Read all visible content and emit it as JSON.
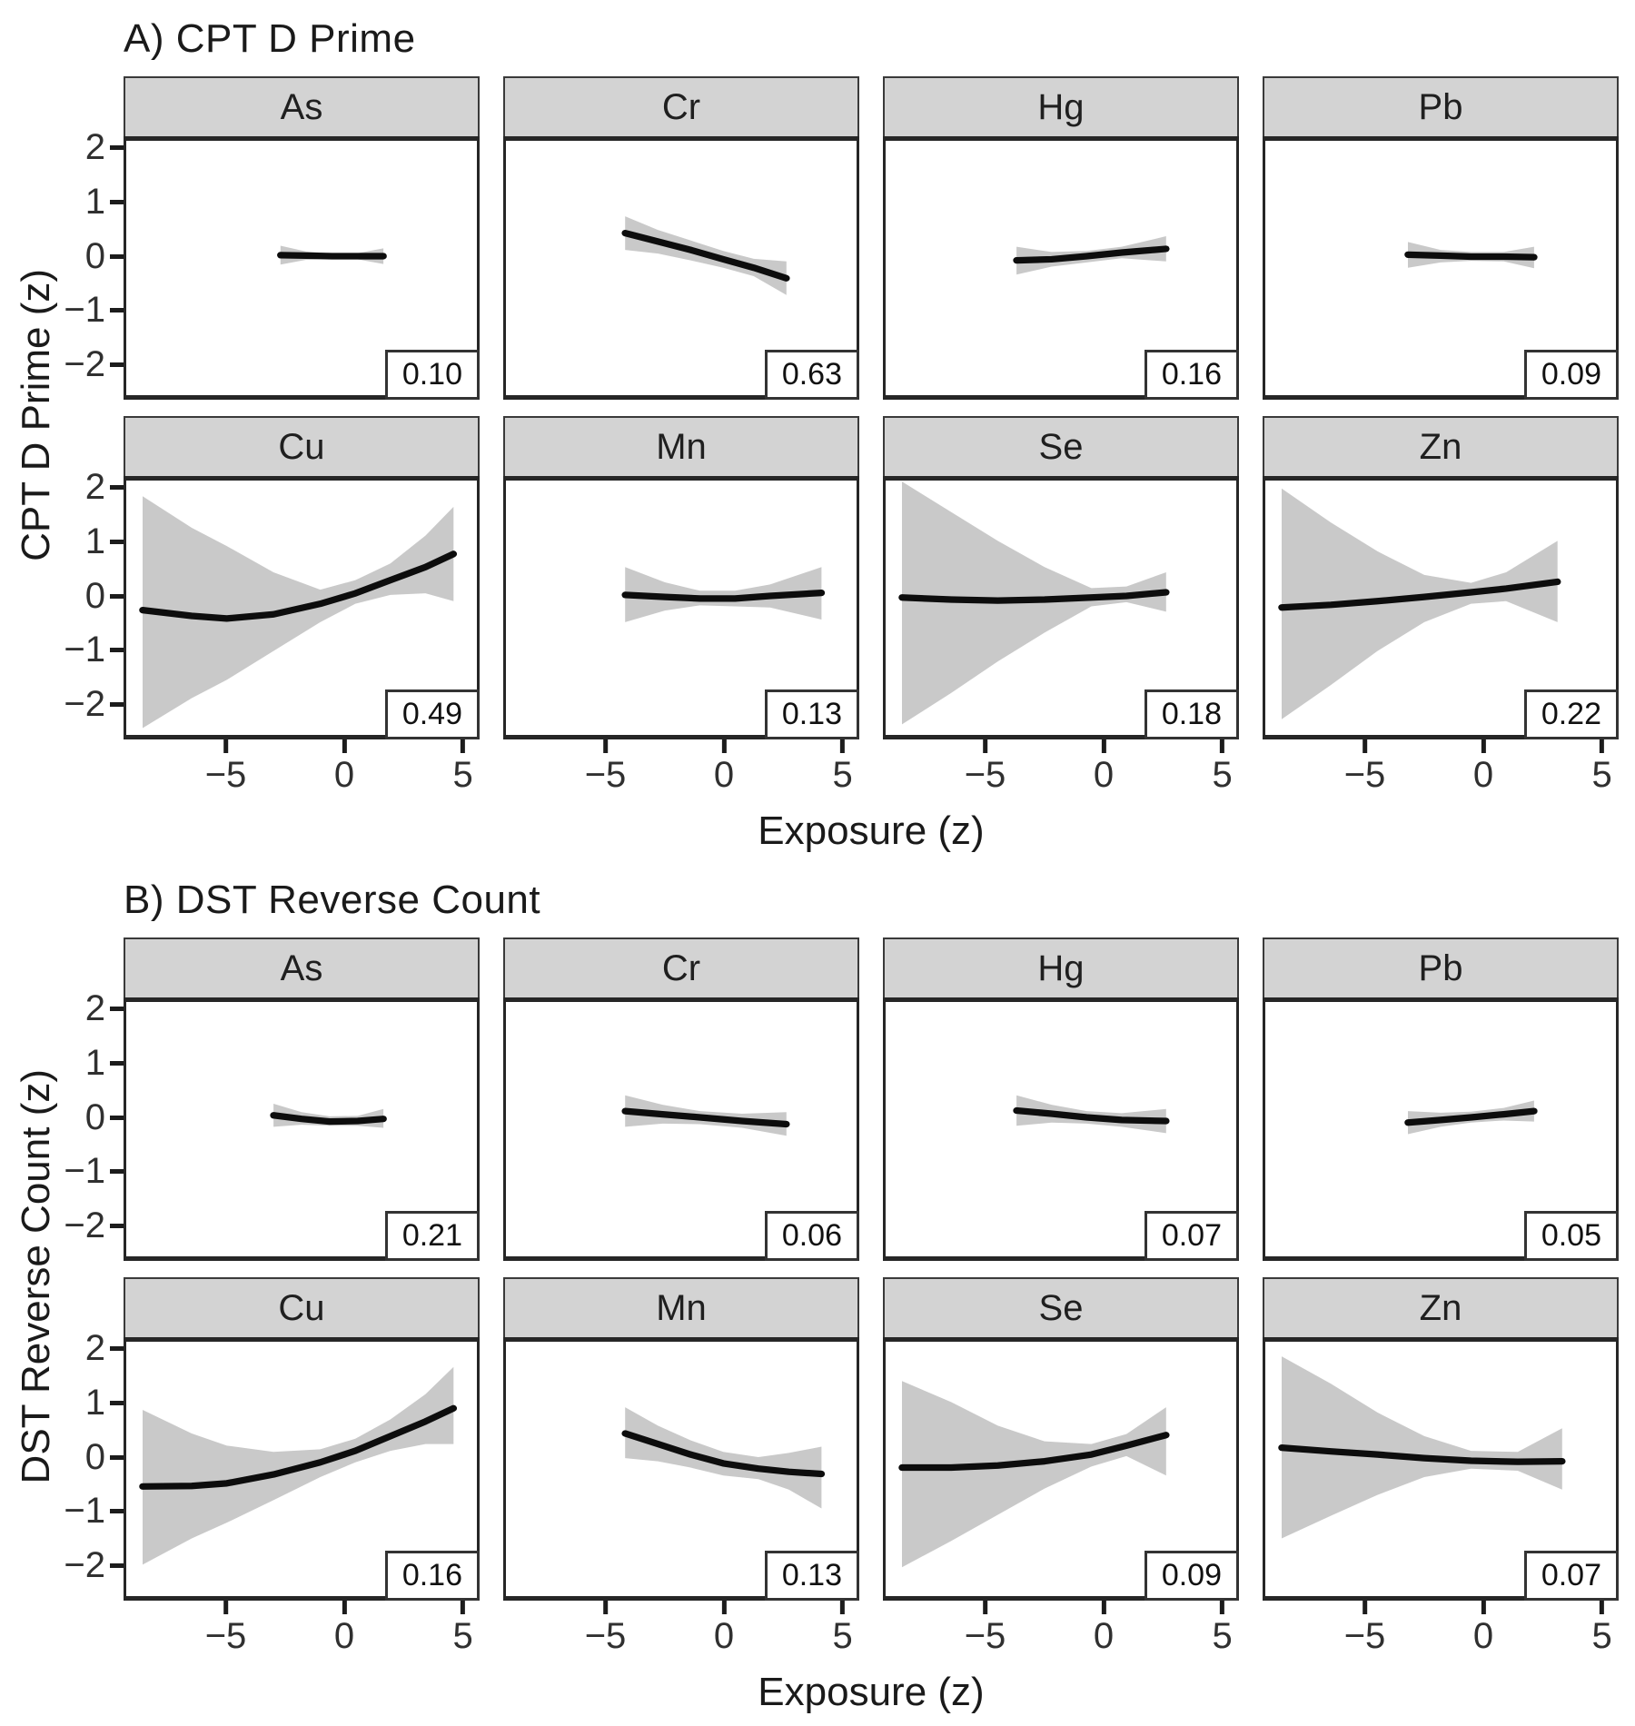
{
  "chart_data": {
    "type": "line",
    "xlabel": "Exposure (z)",
    "x_tick_labels": [
      "−5",
      "0",
      "5"
    ],
    "y_tick_labels": [
      "2",
      "1",
      "0",
      "−1",
      "−2"
    ],
    "x_domain": [
      -9.3,
      5.7
    ],
    "y_domain": [
      -2.65,
      2.2
    ],
    "grid": false,
    "legend": "none",
    "colors": {
      "band": "#c9c9c9",
      "line": "#0d0d0d",
      "strip_bg": "#d3d3d3",
      "panel_border": "#262626"
    },
    "note": "points are [x, fit, ci_low, ci_high]",
    "sections": [
      {
        "title": "A) CPT D Prime",
        "ylabel": "CPT D Prime (z)",
        "facets": [
          {
            "label": "As",
            "value": "0.10",
            "points": [
              [
                -2.7,
                0.02,
                -0.16,
                0.2
              ],
              [
                -1.6,
                0.01,
                -0.07,
                0.09
              ],
              [
                -0.5,
                0.0,
                -0.05,
                0.05
              ],
              [
                0.6,
                0.0,
                -0.06,
                0.06
              ],
              [
                1.7,
                0.0,
                -0.15,
                0.15
              ]
            ]
          },
          {
            "label": "Cr",
            "value": "0.63",
            "points": [
              [
                -4.2,
                0.44,
                0.12,
                0.76
              ],
              [
                -2.8,
                0.28,
                0.05,
                0.5
              ],
              [
                -1.4,
                0.12,
                -0.08,
                0.3
              ],
              [
                0.0,
                -0.06,
                -0.22,
                0.1
              ],
              [
                1.3,
                -0.22,
                -0.38,
                -0.05
              ],
              [
                2.7,
                -0.42,
                -0.74,
                -0.1
              ]
            ]
          },
          {
            "label": "Hg",
            "value": "0.16",
            "points": [
              [
                -3.7,
                -0.08,
                -0.35,
                0.18
              ],
              [
                -2.2,
                -0.06,
                -0.2,
                0.08
              ],
              [
                -0.7,
                0.0,
                -0.12,
                0.1
              ],
              [
                0.8,
                0.07,
                -0.04,
                0.18
              ],
              [
                2.7,
                0.14,
                -0.1,
                0.38
              ]
            ]
          },
          {
            "label": "Pb",
            "value": "0.09",
            "points": [
              [
                -3.2,
                0.03,
                -0.22,
                0.27
              ],
              [
                -1.8,
                0.01,
                -0.12,
                0.12
              ],
              [
                -0.5,
                -0.01,
                -0.09,
                0.08
              ],
              [
                0.9,
                -0.01,
                -0.1,
                0.08
              ],
              [
                2.2,
                -0.02,
                -0.23,
                0.18
              ]
            ]
          },
          {
            "label": "Cu",
            "value": "0.49",
            "points": [
              [
                -8.6,
                -0.27,
                -2.52,
                1.9
              ],
              [
                -6.5,
                -0.38,
                -1.95,
                1.3
              ],
              [
                -5.0,
                -0.43,
                -1.6,
                0.95
              ],
              [
                -3.0,
                -0.35,
                -1.05,
                0.45
              ],
              [
                -1.0,
                -0.15,
                -0.5,
                0.12
              ],
              [
                0.5,
                0.05,
                -0.15,
                0.3
              ],
              [
                2.0,
                0.3,
                0.02,
                0.62
              ],
              [
                3.5,
                0.55,
                0.05,
                1.15
              ],
              [
                4.7,
                0.8,
                -0.1,
                1.7
              ]
            ]
          },
          {
            "label": "Mn",
            "value": "0.13",
            "points": [
              [
                -4.2,
                0.02,
                -0.5,
                0.55
              ],
              [
                -2.5,
                -0.02,
                -0.28,
                0.26
              ],
              [
                -1.0,
                -0.05,
                -0.18,
                0.1
              ],
              [
                0.5,
                -0.05,
                -0.2,
                0.1
              ],
              [
                2.0,
                0.0,
                -0.22,
                0.22
              ],
              [
                4.2,
                0.06,
                -0.45,
                0.55
              ]
            ]
          },
          {
            "label": "Se",
            "value": "0.18",
            "points": [
              [
                -8.6,
                -0.03,
                -2.45,
                2.18
              ],
              [
                -6.5,
                -0.07,
                -1.85,
                1.6
              ],
              [
                -4.5,
                -0.09,
                -1.25,
                1.05
              ],
              [
                -2.5,
                -0.07,
                -0.7,
                0.55
              ],
              [
                -0.5,
                -0.03,
                -0.2,
                0.15
              ],
              [
                1.0,
                0.0,
                -0.12,
                0.18
              ],
              [
                2.7,
                0.07,
                -0.3,
                0.45
              ]
            ]
          },
          {
            "label": "Zn",
            "value": "0.22",
            "points": [
              [
                -8.6,
                -0.22,
                -2.35,
                2.05
              ],
              [
                -6.5,
                -0.17,
                -1.7,
                1.4
              ],
              [
                -4.5,
                -0.1,
                -1.05,
                0.85
              ],
              [
                -2.5,
                -0.02,
                -0.5,
                0.4
              ],
              [
                -0.5,
                0.07,
                -0.15,
                0.25
              ],
              [
                1.0,
                0.14,
                -0.1,
                0.45
              ],
              [
                3.2,
                0.27,
                -0.5,
                1.05
              ]
            ]
          }
        ]
      },
      {
        "title": "B) DST Reverse Count",
        "ylabel": "DST Reverse Count (z)",
        "facets": [
          {
            "label": "As",
            "value": "0.21",
            "points": [
              [
                -3.0,
                0.04,
                -0.18,
                0.26
              ],
              [
                -1.8,
                -0.03,
                -0.14,
                0.1
              ],
              [
                -0.6,
                -0.08,
                -0.16,
                0.02
              ],
              [
                0.6,
                -0.07,
                -0.16,
                0.03
              ],
              [
                1.7,
                -0.03,
                -0.2,
                0.16
              ]
            ]
          },
          {
            "label": "Cr",
            "value": "0.06",
            "points": [
              [
                -4.2,
                0.12,
                -0.18,
                0.42
              ],
              [
                -2.6,
                0.06,
                -0.12,
                0.24
              ],
              [
                -1.0,
                0.0,
                -0.13,
                0.12
              ],
              [
                0.8,
                -0.07,
                -0.2,
                0.07
              ],
              [
                2.7,
                -0.13,
                -0.35,
                0.1
              ]
            ]
          },
          {
            "label": "Hg",
            "value": "0.07",
            "points": [
              [
                -3.7,
                0.13,
                -0.16,
                0.42
              ],
              [
                -2.2,
                0.07,
                -0.1,
                0.24
              ],
              [
                -0.7,
                0.0,
                -0.12,
                0.12
              ],
              [
                0.8,
                -0.05,
                -0.18,
                0.08
              ],
              [
                2.7,
                -0.07,
                -0.3,
                0.16
              ]
            ]
          },
          {
            "label": "Pb",
            "value": "0.05",
            "points": [
              [
                -3.2,
                -0.1,
                -0.32,
                0.12
              ],
              [
                -1.8,
                -0.05,
                -0.18,
                0.09
              ],
              [
                -0.5,
                0.0,
                -0.1,
                0.11
              ],
              [
                0.9,
                0.06,
                -0.06,
                0.18
              ],
              [
                2.2,
                0.12,
                -0.08,
                0.32
              ]
            ]
          },
          {
            "label": "Cu",
            "value": "0.16",
            "points": [
              [
                -8.6,
                -0.56,
                -2.05,
                0.9
              ],
              [
                -6.5,
                -0.55,
                -1.55,
                0.45
              ],
              [
                -5.0,
                -0.5,
                -1.25,
                0.22
              ],
              [
                -3.0,
                -0.33,
                -0.82,
                0.1
              ],
              [
                -1.0,
                -0.1,
                -0.38,
                0.15
              ],
              [
                0.5,
                0.12,
                -0.1,
                0.35
              ],
              [
                2.0,
                0.4,
                0.12,
                0.72
              ],
              [
                3.5,
                0.68,
                0.25,
                1.2
              ],
              [
                4.7,
                0.93,
                0.25,
                1.72
              ]
            ]
          },
          {
            "label": "Mn",
            "value": "0.13",
            "points": [
              [
                -4.2,
                0.45,
                -0.02,
                0.95
              ],
              [
                -2.8,
                0.25,
                -0.08,
                0.6
              ],
              [
                -1.4,
                0.05,
                -0.2,
                0.32
              ],
              [
                0.0,
                -0.12,
                -0.35,
                0.1
              ],
              [
                1.5,
                -0.22,
                -0.42,
                0.0
              ],
              [
                2.8,
                -0.28,
                -0.62,
                0.08
              ],
              [
                4.2,
                -0.32,
                -0.98,
                0.2
              ]
            ]
          },
          {
            "label": "Se",
            "value": "0.09",
            "points": [
              [
                -8.6,
                -0.2,
                -2.1,
                1.45
              ],
              [
                -6.5,
                -0.2,
                -1.6,
                1.05
              ],
              [
                -4.5,
                -0.16,
                -1.1,
                0.6
              ],
              [
                -2.5,
                -0.08,
                -0.6,
                0.3
              ],
              [
                -0.5,
                0.05,
                -0.18,
                0.25
              ],
              [
                1.0,
                0.22,
                0.02,
                0.44
              ],
              [
                2.7,
                0.42,
                -0.35,
                0.95
              ]
            ]
          },
          {
            "label": "Zn",
            "value": "0.07",
            "points": [
              [
                -8.6,
                0.18,
                -1.55,
                1.92
              ],
              [
                -6.5,
                0.11,
                -1.12,
                1.4
              ],
              [
                -4.5,
                0.05,
                -0.72,
                0.85
              ],
              [
                -2.5,
                -0.02,
                -0.38,
                0.4
              ],
              [
                -0.5,
                -0.07,
                -0.22,
                0.12
              ],
              [
                1.5,
                -0.09,
                -0.26,
                0.1
              ],
              [
                3.4,
                -0.08,
                -0.62,
                0.55
              ]
            ]
          }
        ]
      }
    ]
  }
}
